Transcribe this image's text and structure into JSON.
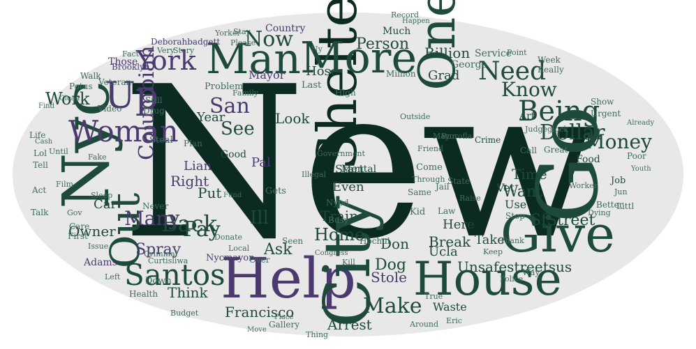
{
  "words": {
    "new": "New",
    "shelter": "Shelter",
    "go": "Go",
    "nyc": "Nyc",
    "help": "Help",
    "city": "City",
    "house": "House",
    "give": "Give",
    "more": "More",
    "one": "One",
    "man": "Man",
    "woman": "Woman",
    "up": "Up",
    "out": "Out",
    "santos": "Santos",
    "york": "York",
    "need": "Need",
    "being": "Being",
    "know": "Know",
    "money": "Money",
    "dollar": "Dollar",
    "san": "San",
    "see": "See",
    "make": "Make",
    "work": "Work",
    "columbian": "Columbian",
    "now": "Now",
    "back": "Back",
    "pay": "Pay",
    "person": "Person",
    "home": "Home",
    "many": "Many",
    "unsafestreetsus": "Unsafestreetsus",
    "street": "Street",
    "sf": "Sf",
    "francisco": "Francisco",
    "dog": "Dog",
    "ask": "Ask",
    "stole": "Stole",
    "spray": "Spray",
    "owner": "Owner",
    "arrest": "Arrest",
    "don": "Don",
    "train": "Train",
    "want": "Want",
    "time": "Time",
    "look": "Look",
    "ucla": "Ucla",
    "billion": "Billion",
    "grad": "Grad",
    "lian": "Lian",
    "right": "Right",
    "put": "Put",
    "think": "Think",
    "year": "Year",
    "car": "Car",
    "here": "Here",
    "take": "Take",
    "break": "Break",
    "even": "Even",
    "start": "Start",
    "mayor": "Mayor",
    "ill": "Ill",
    "vet": "Vet",
    "use": "Use",
    "waste": "Waste",
    "good": "Good",
    "video": "Video",
    "potus": "Potus",
    "veteran": "Veteran",
    "brooklyn": "Brooklyn",
    "drug": "Drug",
    "still": "Still",
    "those": "Those",
    "walk": "Walk",
    "fact": "Fact",
    "very": "Very",
    "story": "Story",
    "deborahbadgett": "Deborahbadgett",
    "please": "Please",
    "yorker": "Yorker",
    "stay": "Stay",
    "country": "Country",
    "much": "Much",
    "george": "George",
    "service": "Service",
    "art": "Art",
    "food": "Food",
    "job": "Job",
    "really": "Really",
    "mental": "Mental",
    "crime": "Crime",
    "run": "Run",
    "call": "Call",
    "stop": "Stop",
    "way": "Way",
    "police": "Police",
    "eric": "Eric",
    "hochul": "Hochul",
    "gallery": "Gallery",
    "keep": "Keep",
    "kill": "Kill",
    "adams": "Adams",
    "down": "Down",
    "health": "Health",
    "budget": "Budget",
    "left": "Left",
    "nypd": "Nypd",
    "same": "Same",
    "kid": "Kid",
    "gets": "Gets",
    "plan": "Plan",
    "seen": "Seen",
    "busy": "Busy",
    "come": "Come",
    "thank": "Thank",
    "problem": "Problem",
    "friend": "Friend",
    "state": "State",
    "law": "Law",
    "lol": "Lol",
    "life": "Life",
    "tell": "Tell",
    "act": "Act",
    "film": "Film",
    "talk": "Talk",
    "gov": "Gov",
    "care": "Care",
    "first": "First",
    "issue": "Issue",
    "criminal": "Criminal",
    "donate": "Donate",
    "local": "Local",
    "nycmayor": "Nycmayor",
    "over": "Over",
    "curtisliwa": "Curtisliwa",
    "jail": "Jail",
    "pal": "Pal",
    "million": "Million",
    "high": "High",
    "outside": "Outside",
    "point": "Point",
    "week": "Week",
    "better": "Better",
    "littl": "Littl",
    "urgent": "Urgent",
    "great": "Great",
    "show": "Show",
    "poor": "Poor",
    "worker": "Worker",
    "mayorofla": "Mayorofla",
    "judgeglock": "Judgeglock",
    "raise": "Raise",
    "nyc_secondary": "Ny",
    "steal": "Steal",
    "never": "Never",
    "fake": "Fake",
    "until": "Until",
    "sleep": "Sleep",
    "cash": "Cash",
    "find": "Find",
    "clean": "Clean",
    "family": "Family",
    "government": "Government",
    "illegal": "Illegal",
    "through": "Through",
    "hose": "Hose",
    "last": "Last",
    "already": "Already",
    "youth": "Youth",
    "dying": "Dying",
    "jun": "Jun",
    "around": "Around",
    "thing": "Thing",
    "true": "True",
    "move": "Move",
    "place": "Place",
    "fund": "Fund",
    "congress": "Congress",
    "record": "Record",
    "happen": "Happen"
  }
}
